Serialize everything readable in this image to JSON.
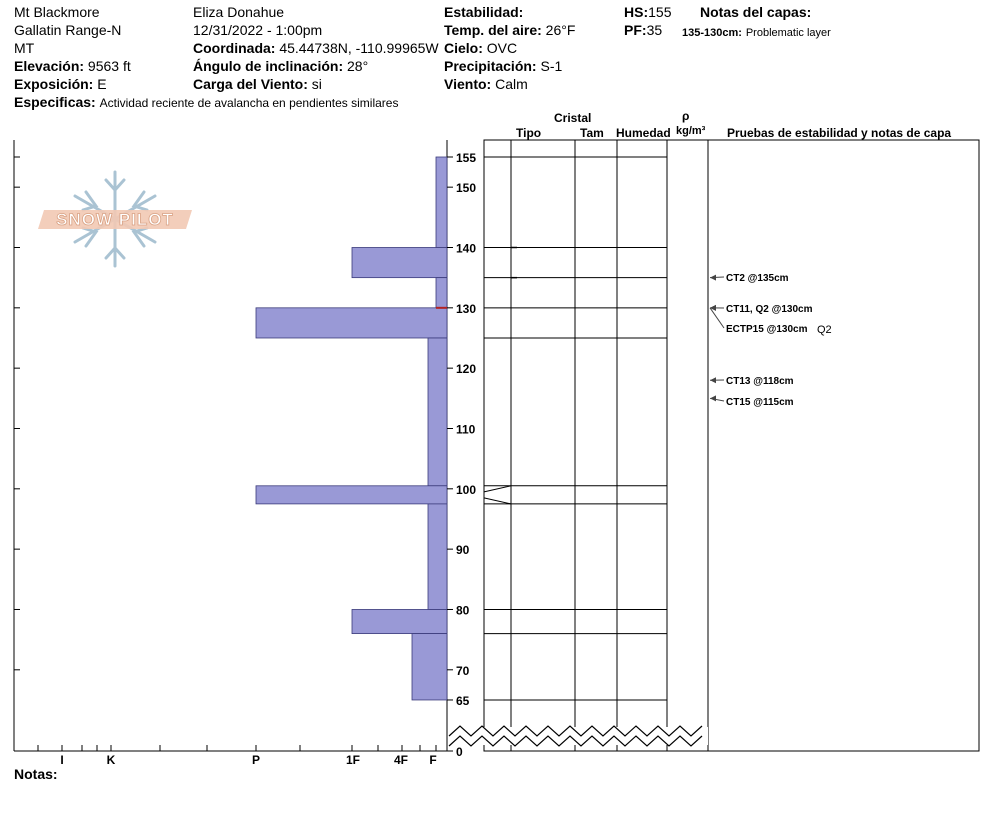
{
  "header": {
    "location": "Mt Blackmore",
    "range": "Gallatin Range-N",
    "state": "MT",
    "elevation_label": "Elevación:",
    "elevation_value": "9563 ft",
    "aspect_label": "Exposición:",
    "aspect_value": "E",
    "specifics_label": "Especificas:",
    "specifics_value": "Actividad reciente de avalancha en pendientes similares",
    "observer": "Eliza Donahue",
    "datetime": "12/31/2022 - 1:00pm",
    "coord_label": "Coordinada:",
    "coord_value": "45.44738N, -110.99965W",
    "slope_label": "Ángulo de inclinación:",
    "slope_value": "28°",
    "wind_load_label": "Carga del Viento:",
    "wind_load_value": "si",
    "stability_label": "Estabilidad:",
    "air_temp_label": "Temp. del aire:",
    "air_temp_value": "26°F",
    "sky_label": "Cielo:",
    "sky_value": "OVC",
    "precip_label": "Precipitación:",
    "precip_value": "S-1",
    "wind_label": "Viento:",
    "wind_value": "Calm",
    "hs_label": "HS:",
    "hs_value": "155",
    "pf_label": "PF:",
    "pf_value": "35",
    "layer_notes_label": "Notas del capas:",
    "layer_note_range": "135-130cm:",
    "layer_note_text": "Problematic layer"
  },
  "logo_text": "SNOW PILOT",
  "columns": {
    "crystal": "Cristal",
    "type": "Tipo",
    "size": "Tam",
    "moisture": "Humedad",
    "rho": "ρ",
    "density_unit": "kg/m³",
    "stability_tests": "Pruebas de estabilidad y notas de capa"
  },
  "notes_label": "Notas:",
  "colors": {
    "layer_fill": "#9999d6",
    "layer_stroke": "#3a3a7a",
    "marker": "#b22222"
  },
  "chart_data": {
    "type": "snow_profile",
    "hs_cm": 155,
    "y_ticks": [
      155,
      150,
      140,
      130,
      120,
      110,
      100,
      90,
      80,
      70,
      65,
      0
    ],
    "hardness_scale": [
      "I",
      "K",
      "P",
      "1F",
      "4F",
      "F"
    ],
    "layers": [
      {
        "top": 155,
        "bottom": 140,
        "hardness": "F"
      },
      {
        "top": 140,
        "bottom": 135,
        "hardness": "1F"
      },
      {
        "top": 135,
        "bottom": 130,
        "hardness": "F"
      },
      {
        "top": 130,
        "bottom": 125,
        "hardness": "P"
      },
      {
        "top": 125,
        "bottom": 100.5,
        "hardness": "F+"
      },
      {
        "top": 100.5,
        "bottom": 97.5,
        "hardness": "P"
      },
      {
        "top": 97.5,
        "bottom": 80,
        "hardness": "F+"
      },
      {
        "top": 80,
        "bottom": 76,
        "hardness": "1F"
      },
      {
        "top": 76,
        "bottom": 65,
        "hardness": "4F-"
      }
    ],
    "layer_boundaries": [
      155,
      140,
      135,
      130,
      125,
      100.5,
      97.5,
      80,
      76,
      65
    ],
    "problem_layer_marker_cm": 130,
    "tests": [
      {
        "label": "CT2 @135cm",
        "depth": 135,
        "extra": ""
      },
      {
        "label": "CT11, Q2 @130cm",
        "depth": 130,
        "extra": ""
      },
      {
        "label": "ECTP15 @130cm",
        "depth": 130,
        "extra": "Q2"
      },
      {
        "label": "CT13 @118cm",
        "depth": 118,
        "extra": ""
      },
      {
        "label": "CT15 @115cm",
        "depth": 115,
        "extra": ""
      }
    ]
  }
}
